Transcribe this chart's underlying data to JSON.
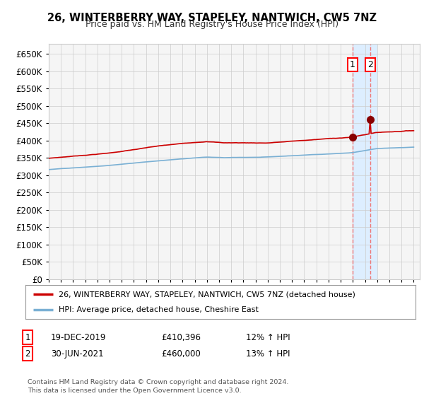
{
  "title": "26, WINTERBERRY WAY, STAPELEY, NANTWICH, CW5 7NZ",
  "subtitle": "Price paid vs. HM Land Registry's House Price Index (HPI)",
  "red_label": "26, WINTERBERRY WAY, STAPELEY, NANTWICH, CW5 7NZ (detached house)",
  "blue_label": "HPI: Average price, detached house, Cheshire East",
  "transaction1_date": "19-DEC-2019",
  "transaction1_price": "£410,396",
  "transaction1_hpi": "12% ↑ HPI",
  "transaction2_date": "30-JUN-2021",
  "transaction2_price": "£460,000",
  "transaction2_hpi": "13% ↑ HPI",
  "footer": "Contains HM Land Registry data © Crown copyright and database right 2024.\nThis data is licensed under the Open Government Licence v3.0.",
  "ylim": [
    0,
    680000
  ],
  "yticks": [
    0,
    50000,
    100000,
    150000,
    200000,
    250000,
    300000,
    350000,
    400000,
    450000,
    500000,
    550000,
    600000,
    650000
  ],
  "red_color": "#cc0000",
  "blue_color": "#7ab0d4",
  "highlight_color": "#ddeeff",
  "vline_color": "#ee7777",
  "marker_color": "#880000",
  "grid_color": "#cccccc",
  "background_color": "#ffffff",
  "chart_bg": "#f5f5f5"
}
